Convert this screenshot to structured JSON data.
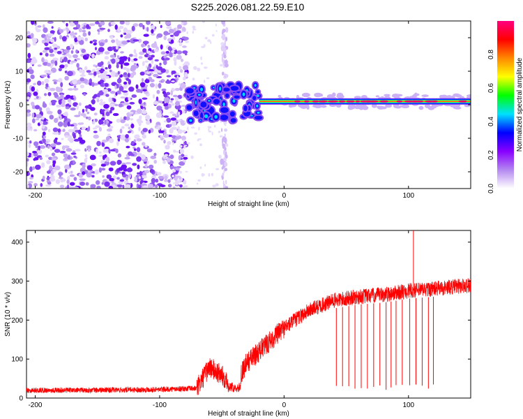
{
  "title": "S225.2026.081.22.59.E10",
  "chart_data": [
    {
      "type": "heatmap",
      "xlabel": "Height of straight line (km)",
      "ylabel": "Frequency (Hz)",
      "xlim": [
        -207,
        150
      ],
      "ylim": [
        -25,
        25
      ],
      "x_ticks": [
        -200,
        -100,
        0,
        100
      ],
      "y_ticks": [
        -20,
        -10,
        0,
        10,
        20
      ],
      "colorbar": {
        "label": "Normalized spectral amplitude",
        "range": [
          0,
          1
        ],
        "ticks": [
          0.0,
          0.2,
          0.4,
          0.6,
          0.8
        ],
        "colors": [
          "#ffffff",
          "#b488f0",
          "#8800ff",
          "#0000ff",
          "#00e0ff",
          "#00ff00",
          "#ffff00",
          "#ff8800",
          "#ff0000",
          "#ff0080"
        ]
      },
      "features": [
        {
          "description": "scattered noise",
          "x_range": [
            -207,
            -78
          ],
          "freq_range": [
            -25,
            25
          ],
          "amplitude": 0.1
        },
        {
          "description": "vertical band",
          "x_range": [
            -50,
            -46
          ],
          "freq_range": [
            -25,
            25
          ],
          "amplitude": 0.05
        },
        {
          "description": "transition blobs",
          "x_range": [
            -78,
            -20
          ],
          "freq_range": [
            -5,
            6
          ],
          "amplitude": 0.25
        },
        {
          "description": "steady signal line",
          "x_range": [
            -20,
            150
          ],
          "frequency": 1,
          "amplitude": 0.85
        }
      ]
    },
    {
      "type": "line",
      "xlabel": "Height of straight line (km)",
      "ylabel": "SNR (10 * v/v)",
      "xlim": [
        -207,
        150
      ],
      "ylim": [
        0,
        430
      ],
      "x_ticks": [
        -200,
        -100,
        0,
        100
      ],
      "y_ticks": [
        0,
        100,
        200,
        300,
        400
      ],
      "color": "#ff0000",
      "series_envelope": {
        "x": [
          -207,
          -160,
          -100,
          -70,
          -60,
          -40,
          -30,
          -20,
          -10,
          0,
          20,
          40,
          60,
          80,
          100,
          120,
          150
        ],
        "y": [
          20,
          20,
          22,
          25,
          80,
          35,
          90,
          120,
          150,
          180,
          225,
          250,
          260,
          265,
          275,
          280,
          290
        ]
      },
      "dropouts_x": [
        42,
        47,
        52,
        57,
        62,
        67,
        72,
        77,
        82,
        86,
        90,
        95,
        101,
        106,
        111,
        116,
        120
      ],
      "peak": {
        "x": 104,
        "y": 430
      }
    }
  ]
}
